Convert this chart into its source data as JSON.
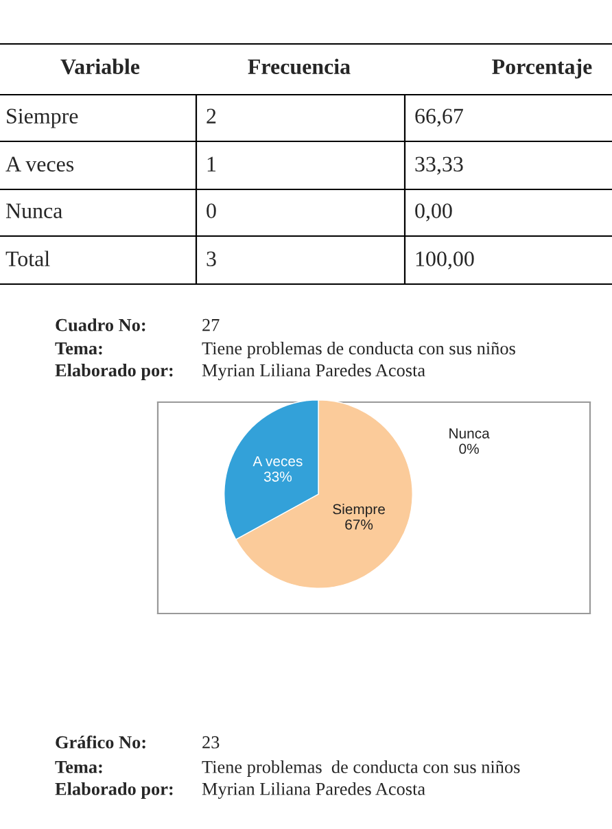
{
  "chart_data": {
    "type": "pie",
    "categories": [
      "Siempre",
      "A veces",
      "Nunca"
    ],
    "values": [
      67,
      33,
      0
    ],
    "value_labels": [
      "67%",
      "33%",
      "0%"
    ],
    "colors": [
      "#fbcb9a",
      "#33a1d9",
      "#a0a0a0"
    ],
    "annotations": [
      "Variable",
      "Frecuencia",
      "Porcentaje",
      "Siempre",
      "2",
      "66,67",
      "A veces",
      "1",
      "33,33",
      "Nunca",
      "0",
      "0,00",
      "Total",
      "3",
      "100,00",
      "Cuadro No:",
      "27",
      "Tema:",
      "Tiene problemas de conducta con sus niños",
      "Elaborado por:",
      "Myrian Liliana Paredes Acosta",
      "Gráfico No:",
      "23",
      "Tema:",
      "Tiene problemas  de conducta con sus niños",
      "Elaborado por:",
      "Myrian Liliana Paredes Acosta"
    ]
  }
}
